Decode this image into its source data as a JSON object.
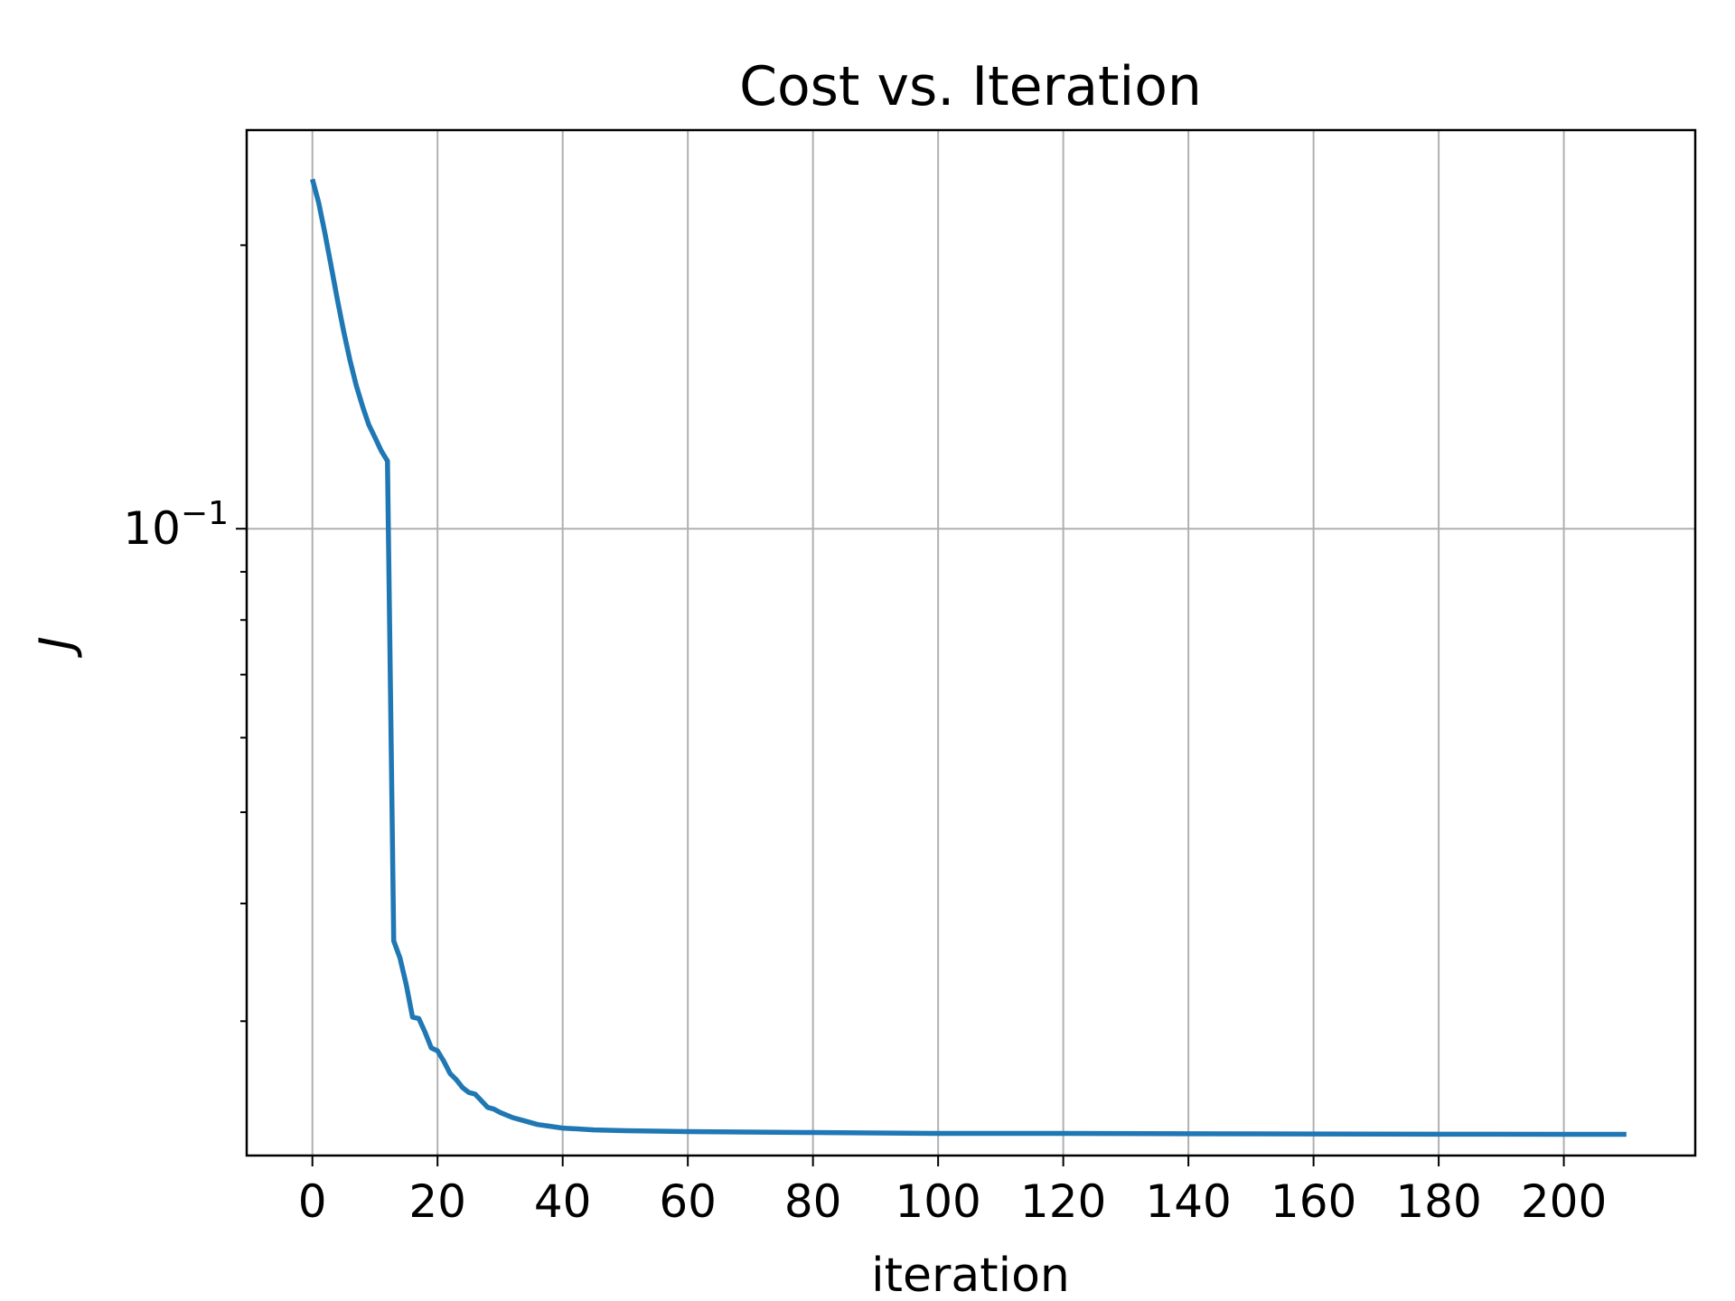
{
  "chart_data": {
    "type": "line",
    "title": "Cost vs. Iteration",
    "xlabel": "iteration",
    "ylabel": "J",
    "yscale": "log",
    "xlim": [
      -10.5,
      221
    ],
    "ylim": [
      0.0216,
      0.265
    ],
    "xticks": [
      0,
      20,
      40,
      60,
      80,
      100,
      120,
      140,
      160,
      180,
      200
    ],
    "xtick_labels": [
      "0",
      "20",
      "40",
      "60",
      "80",
      "100",
      "120",
      "140",
      "160",
      "180",
      "200"
    ],
    "yticks_major": [
      0.1
    ],
    "ytick_major_labels": [
      {
        "base": "10",
        "exp": "−1"
      }
    ],
    "yticks_minor": [
      0.03,
      0.04,
      0.05,
      0.06,
      0.07,
      0.08,
      0.09,
      0.2
    ],
    "grid": true,
    "legend": "none",
    "series": [
      {
        "color": "#1f77b4",
        "x": [
          0,
          1,
          2,
          3,
          4,
          5,
          6,
          7,
          8,
          9,
          10,
          11,
          12,
          13,
          14,
          15,
          16,
          17,
          18,
          19,
          20,
          21,
          22,
          23,
          24,
          25,
          26,
          27,
          28,
          29,
          30,
          32,
          34,
          36,
          38,
          40,
          45,
          50,
          60,
          80,
          100,
          120,
          140,
          160,
          180,
          200,
          210
        ],
        "y": [
          0.235,
          0.222,
          0.206,
          0.19,
          0.175,
          0.162,
          0.151,
          0.142,
          0.135,
          0.129,
          0.125,
          0.121,
          0.118,
          0.0365,
          0.035,
          0.0328,
          0.0303,
          0.0302,
          0.0292,
          0.0281,
          0.0279,
          0.0272,
          0.0264,
          0.026,
          0.0255,
          0.0252,
          0.0251,
          0.0247,
          0.0243,
          0.0242,
          0.024,
          0.0237,
          0.0235,
          0.0233,
          0.0232,
          0.0231,
          0.023,
          0.02295,
          0.0229,
          0.02285,
          0.0228,
          0.0228,
          0.02278,
          0.02277,
          0.02276,
          0.02275,
          0.02275
        ]
      }
    ]
  }
}
